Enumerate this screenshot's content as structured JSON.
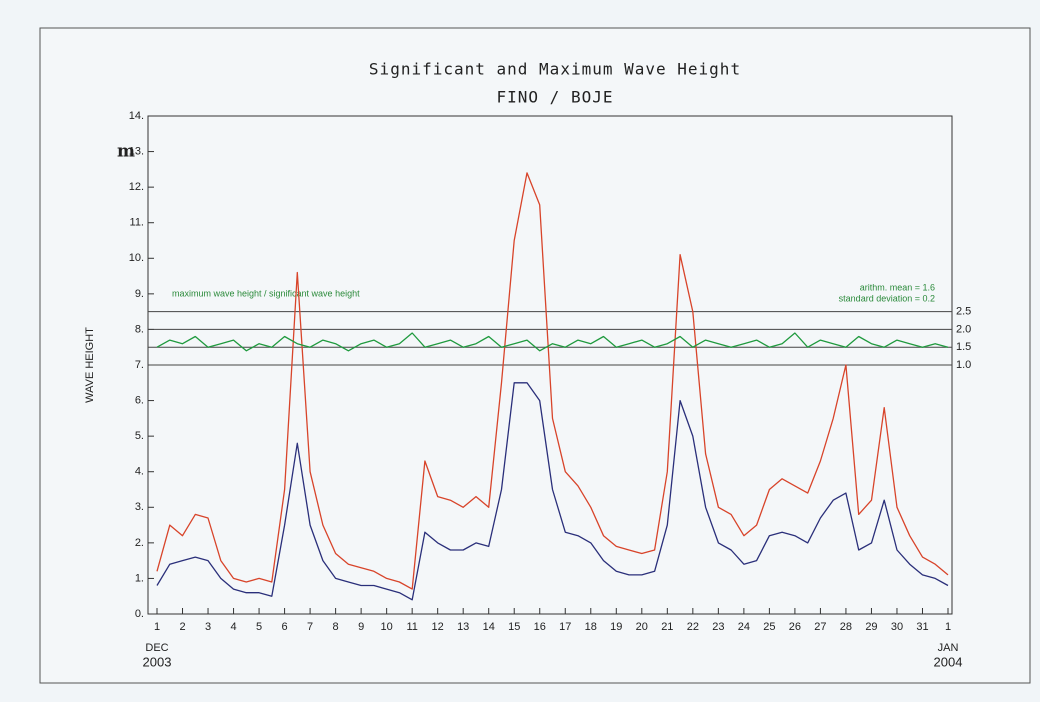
{
  "chart_data": {
    "type": "line",
    "title": "Significant and Maximum Wave Height",
    "subtitle": "FINO / BOJE",
    "y_unit": "m",
    "y_label": "WAVE HEIGHT",
    "ratio_label": "maximum wave height / significant wave height",
    "mean_label": "arithm. mean = 1.6",
    "sd_label": "standard deviation = 0.2",
    "x_start_month": "DEC",
    "x_start_year": "2003",
    "x_end_month": "JAN",
    "x_end_year": "2004",
    "x": [
      1,
      1.5,
      2,
      2.5,
      3,
      3.5,
      4,
      4.5,
      5,
      5.5,
      6,
      6.5,
      7,
      7.5,
      8,
      8.5,
      9,
      9.5,
      10,
      10.5,
      11,
      11.5,
      12,
      12.5,
      13,
      13.5,
      14,
      14.5,
      15,
      15.5,
      16,
      16.5,
      17,
      17.5,
      18,
      18.5,
      19,
      19.5,
      20,
      20.5,
      21,
      21.5,
      22,
      22.5,
      23,
      23.5,
      24,
      24.5,
      25,
      25.5,
      26,
      26.5,
      27,
      27.5,
      28,
      28.5,
      29,
      29.5,
      30,
      30.5,
      31,
      31.5,
      32
    ],
    "series": [
      {
        "name": "maximum wave height",
        "color": "#d8442a",
        "values": [
          1.2,
          2.5,
          2.2,
          2.8,
          2.7,
          1.5,
          1.0,
          0.9,
          1.0,
          0.9,
          3.5,
          9.6,
          4.0,
          2.5,
          1.7,
          1.4,
          1.3,
          1.2,
          1.0,
          0.9,
          0.7,
          4.3,
          3.3,
          3.2,
          3.0,
          3.3,
          3.0,
          6.5,
          10.5,
          12.4,
          11.5,
          5.5,
          4.0,
          3.6,
          3.0,
          2.2,
          1.9,
          1.8,
          1.7,
          1.8,
          4.0,
          10.1,
          8.5,
          4.5,
          3.0,
          2.8,
          2.2,
          2.5,
          3.5,
          3.8,
          3.6,
          3.4,
          4.3,
          5.5,
          7.0,
          2.8,
          3.2,
          5.8,
          3.0,
          2.2,
          1.6,
          1.4,
          1.1
        ]
      },
      {
        "name": "significant wave height",
        "color": "#2a2f7a",
        "values": [
          0.8,
          1.4,
          1.5,
          1.6,
          1.5,
          1.0,
          0.7,
          0.6,
          0.6,
          0.5,
          2.5,
          4.8,
          2.5,
          1.5,
          1.0,
          0.9,
          0.8,
          0.8,
          0.7,
          0.6,
          0.4,
          2.3,
          2.0,
          1.8,
          1.8,
          2.0,
          1.9,
          3.5,
          6.5,
          6.5,
          6.0,
          3.5,
          2.3,
          2.2,
          2.0,
          1.5,
          1.2,
          1.1,
          1.1,
          1.2,
          2.5,
          6.0,
          5.0,
          3.0,
          2.0,
          1.8,
          1.4,
          1.5,
          2.2,
          2.3,
          2.2,
          2.0,
          2.7,
          3.2,
          3.4,
          1.8,
          2.0,
          3.2,
          1.8,
          1.4,
          1.1,
          1.0,
          0.8
        ]
      },
      {
        "name": "ratio",
        "color": "#1f9a3e",
        "axis": "y2",
        "values": [
          1.5,
          1.7,
          1.6,
          1.8,
          1.5,
          1.6,
          1.7,
          1.4,
          1.6,
          1.5,
          1.8,
          1.6,
          1.5,
          1.7,
          1.6,
          1.4,
          1.6,
          1.7,
          1.5,
          1.6,
          1.9,
          1.5,
          1.6,
          1.7,
          1.5,
          1.6,
          1.8,
          1.5,
          1.6,
          1.7,
          1.4,
          1.6,
          1.5,
          1.7,
          1.6,
          1.8,
          1.5,
          1.6,
          1.7,
          1.5,
          1.6,
          1.8,
          1.5,
          1.7,
          1.6,
          1.5,
          1.6,
          1.7,
          1.5,
          1.6,
          1.9,
          1.5,
          1.7,
          1.6,
          1.5,
          1.8,
          1.6,
          1.5,
          1.7,
          1.6,
          1.5,
          1.6,
          1.5
        ]
      }
    ],
    "xlim": [
      1,
      32
    ],
    "xticks": [
      1,
      2,
      3,
      4,
      5,
      6,
      7,
      8,
      9,
      10,
      11,
      12,
      13,
      14,
      15,
      16,
      17,
      18,
      19,
      20,
      21,
      22,
      23,
      24,
      25,
      26,
      27,
      28,
      29,
      30,
      31,
      {
        "value": 32,
        "label": "1"
      }
    ],
    "ylim": [
      0,
      14
    ],
    "yticks": [
      {
        "value": 0,
        "label": "0."
      },
      {
        "value": 1,
        "label": "1."
      },
      {
        "value": 2,
        "label": "2."
      },
      {
        "value": 3,
        "label": "3."
      },
      {
        "value": 4,
        "label": "4."
      },
      {
        "value": 5,
        "label": "5."
      },
      {
        "value": 6,
        "label": "6."
      },
      {
        "value": 7,
        "label": "7."
      },
      {
        "value": 8,
        "label": "8."
      },
      {
        "value": 9,
        "label": "9."
      },
      {
        "value": 10,
        "label": "10."
      },
      {
        "value": 11,
        "label": "11."
      },
      {
        "value": 12,
        "label": "12."
      },
      {
        "value": 13,
        "label": "13."
      },
      {
        "value": 14,
        "label": "14."
      }
    ],
    "y2lim": [
      -6,
      8
    ],
    "y2ticks": [
      {
        "value": 1,
        "label": "1.0"
      },
      {
        "value": 1.5,
        "label": "1.5"
      },
      {
        "value": 2,
        "label": "2.0"
      },
      {
        "value": 2.5,
        "label": "2.5"
      }
    ]
  }
}
